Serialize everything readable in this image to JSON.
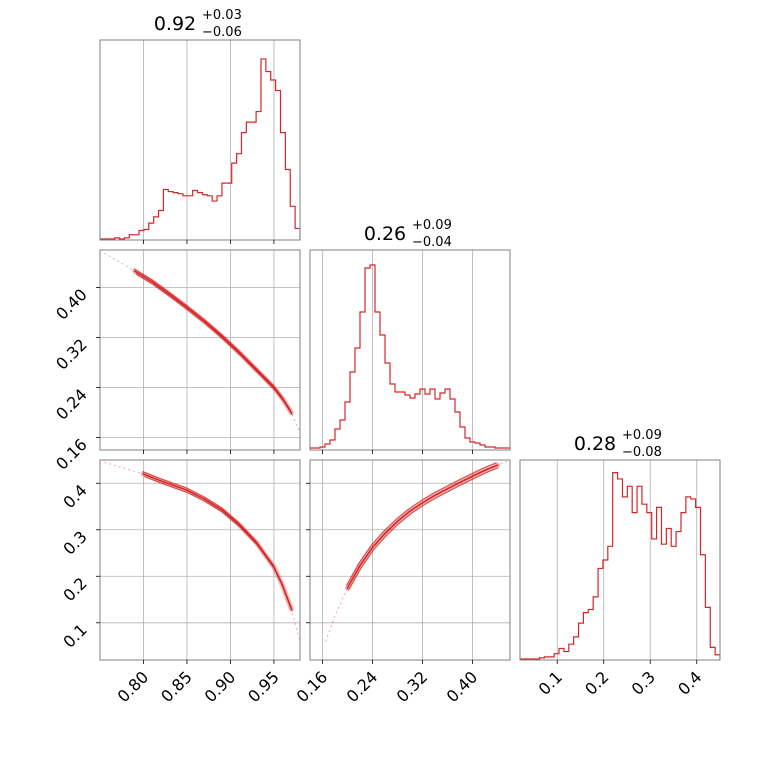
{
  "colors": {
    "accent": "#d62728",
    "grid": "#b0b0b0",
    "frame": "#808080"
  },
  "chart_data": {
    "type": "corner",
    "grid": true,
    "parameters": [
      {
        "title": {
          "median": "0.92",
          "plus": "+0.03",
          "minus": "−0.06"
        },
        "range": [
          0.75,
          0.98
        ],
        "ticks": [
          0.8,
          0.85,
          0.9,
          0.95
        ],
        "tick_labels": [
          "0.80",
          "0.85",
          "0.90",
          "0.95"
        ],
        "histogram": {
          "values": [
            1,
            1,
            1,
            2,
            1,
            2,
            5,
            5,
            9,
            10,
            16,
            22,
            28,
            48,
            46,
            45,
            44,
            42,
            42,
            47,
            45,
            43,
            42,
            37,
            42,
            54,
            54,
            73,
            82,
            102,
            112,
            112,
            122,
            172,
            160,
            152,
            142,
            102,
            67,
            32,
            11
          ],
          "max": 190
        }
      },
      {
        "title": {
          "median": "0.26",
          "plus": "+0.09",
          "minus": "−0.04"
        },
        "range": [
          0.14,
          0.46
        ],
        "ticks": [
          0.16,
          0.24,
          0.32,
          0.4
        ],
        "tick_labels": [
          "0.16",
          "0.24",
          "0.32",
          "0.40"
        ],
        "histogram": {
          "values": [
            2,
            2,
            3,
            6,
            10,
            21,
            30,
            48,
            78,
            102,
            138,
            182,
            185,
            138,
            115,
            87,
            66,
            58,
            58,
            55,
            52,
            56,
            61,
            56,
            61,
            51,
            57,
            61,
            51,
            38,
            23,
            12,
            8,
            7,
            5,
            3,
            3,
            2,
            2,
            2
          ],
          "max": 200
        }
      },
      {
        "title": {
          "median": "0.28",
          "plus": "+0.09",
          "minus": "−0.08"
        },
        "range": [
          0.02,
          0.45
        ],
        "ticks": [
          0.1,
          0.2,
          0.3,
          0.4
        ],
        "tick_labels": [
          "0.1",
          "0.2",
          "0.3",
          "0.4"
        ],
        "histogram": {
          "values": [
            1,
            1,
            1,
            1,
            2,
            3,
            3,
            6,
            11,
            8,
            15,
            22,
            35,
            45,
            48,
            60,
            87,
            95,
            108,
            178,
            172,
            155,
            165,
            140,
            165,
            148,
            140,
            115,
            145,
            110,
            125,
            108,
            122,
            140,
            155,
            153,
            145,
            100,
            50,
            12,
            5
          ],
          "max": 190
        }
      }
    ],
    "contours": [
      {
        "row": 1,
        "col": 0,
        "points": [
          [
            0.755,
            0.455
          ],
          [
            0.77,
            0.443
          ],
          [
            0.79,
            0.426
          ],
          [
            0.81,
            0.409
          ],
          [
            0.83,
            0.389
          ],
          [
            0.85,
            0.368
          ],
          [
            0.87,
            0.346
          ],
          [
            0.89,
            0.322
          ],
          [
            0.91,
            0.296
          ],
          [
            0.93,
            0.268
          ],
          [
            0.95,
            0.24
          ],
          [
            0.96,
            0.222
          ],
          [
            0.97,
            0.2
          ],
          [
            0.98,
            0.168
          ]
        ]
      },
      {
        "row": 2,
        "col": 0,
        "points": [
          [
            0.755,
            0.445
          ],
          [
            0.78,
            0.431
          ],
          [
            0.8,
            0.42
          ],
          [
            0.82,
            0.405
          ],
          [
            0.85,
            0.385
          ],
          [
            0.87,
            0.366
          ],
          [
            0.89,
            0.343
          ],
          [
            0.91,
            0.311
          ],
          [
            0.93,
            0.272
          ],
          [
            0.95,
            0.22
          ],
          [
            0.96,
            0.18
          ],
          [
            0.97,
            0.13
          ],
          [
            0.98,
            0.06
          ]
        ]
      },
      {
        "row": 2,
        "col": 1,
        "points": [
          [
            0.165,
            0.06
          ],
          [
            0.18,
            0.115
          ],
          [
            0.2,
            0.175
          ],
          [
            0.22,
            0.223
          ],
          [
            0.24,
            0.262
          ],
          [
            0.26,
            0.292
          ],
          [
            0.28,
            0.318
          ],
          [
            0.3,
            0.34
          ],
          [
            0.32,
            0.358
          ],
          [
            0.34,
            0.374
          ],
          [
            0.36,
            0.388
          ],
          [
            0.38,
            0.402
          ],
          [
            0.4,
            0.415
          ],
          [
            0.42,
            0.428
          ],
          [
            0.44,
            0.439
          ],
          [
            0.455,
            0.447
          ]
        ]
      }
    ]
  }
}
